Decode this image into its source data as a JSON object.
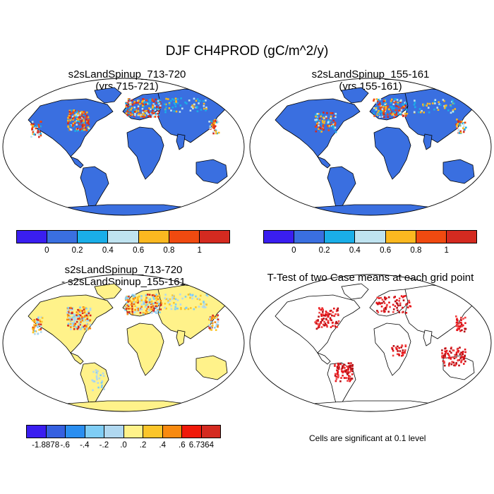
{
  "figure": {
    "title": "DJF CH4PROD (gC/m^2/y)"
  },
  "panels": {
    "top_left": {
      "title": "s2sLandSpinup_713-720\n(yrs 715-721)"
    },
    "top_right": {
      "title": "s2sLandSpinup_155-161\n(yrs 155-161)"
    },
    "bottom_left": {
      "title": "s2sLandSpinup_713-720\n- s2sLandSpinup_155-161"
    },
    "bottom_right": {
      "title": "T-Test of two Case means at each grid point"
    }
  },
  "colorbars": {
    "case": {
      "colors": [
        "#3a1ef0",
        "#3a6fe0",
        "#1aaee8",
        "#bfe3f0",
        "#fbb820",
        "#f04a10",
        "#d42a20"
      ],
      "labels": [
        "0",
        "0.2",
        "0.4",
        "0.6",
        "0.8",
        "1"
      ]
    },
    "diff": {
      "colors": [
        "#3a1ef0",
        "#3560e0",
        "#2a8ef0",
        "#7fcdf5",
        "#b0d8f0",
        "#fff28a",
        "#fbc52a",
        "#f88a10",
        "#f01a0a",
        "#d42a20"
      ],
      "labels": [
        "-1.8878",
        "-.6",
        "-.4",
        "-.2",
        ".0",
        ".2",
        ".4",
        ".6",
        "6.7364"
      ]
    }
  },
  "note": "Cells are significant at 0.1 level"
}
